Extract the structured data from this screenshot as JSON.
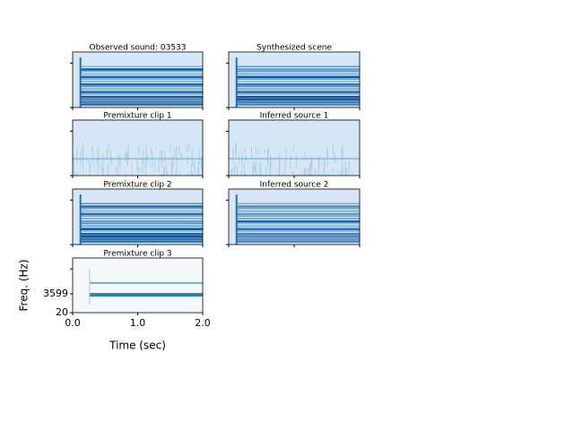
{
  "chart_data": [
    {
      "type": "spectrogram",
      "title": "Observed sound: 03533"
    },
    {
      "type": "spectrogram",
      "title": "Synthesized scene"
    },
    {
      "type": "spectrogram",
      "title": "Premixture clip 1"
    },
    {
      "type": "spectrogram",
      "title": "Inferred source 1"
    },
    {
      "type": "spectrogram",
      "title": "Premixture clip 2"
    },
    {
      "type": "spectrogram",
      "title": "Inferred source 2"
    },
    {
      "type": "spectrogram",
      "title": "Premixture clip 3",
      "x_label": "Time (sec)",
      "y_label": "Freq. (Hz)",
      "xlim": [
        0,
        2
      ],
      "xticks": [
        {
          "value": 0,
          "label": "0.0"
        },
        {
          "value": 1,
          "label": "1.0"
        },
        {
          "value": 2,
          "label": "2.0"
        }
      ],
      "ylim": [
        20,
        10400
      ],
      "yticks": [
        20,
        3599
      ]
    }
  ]
}
